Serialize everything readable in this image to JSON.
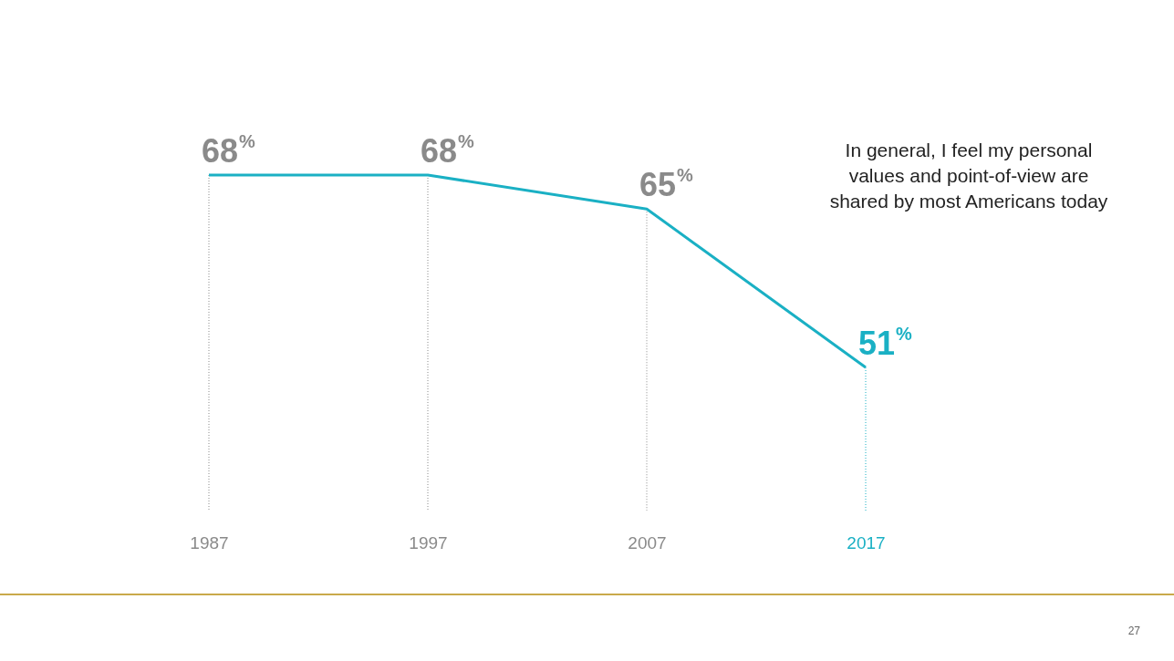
{
  "chart_data": {
    "type": "line",
    "title": "In general, I feel my personal values and point-of-view are shared by most Americans today",
    "categories": [
      "1987",
      "1997",
      "2007",
      "2017"
    ],
    "series": [
      {
        "color": "#1ab0c4",
        "values": [
          68,
          68,
          65,
          51
        ]
      }
    ],
    "colors": [
      "#8a8a8a",
      "#8a8a8a",
      "#8a8a8a",
      "#1ab0c4"
    ],
    "value_labels": [
      "68$^{%}$",
      "68$^{%}$",
      "65$^{%}$",
      "51$^{%}$"
    ],
    "data_labels": true,
    "tick_labels": "x",
    "grid": "x",
    "marker": "none",
    "line_style": "solid",
    "annotations": [
      "27"
    ]
  }
}
